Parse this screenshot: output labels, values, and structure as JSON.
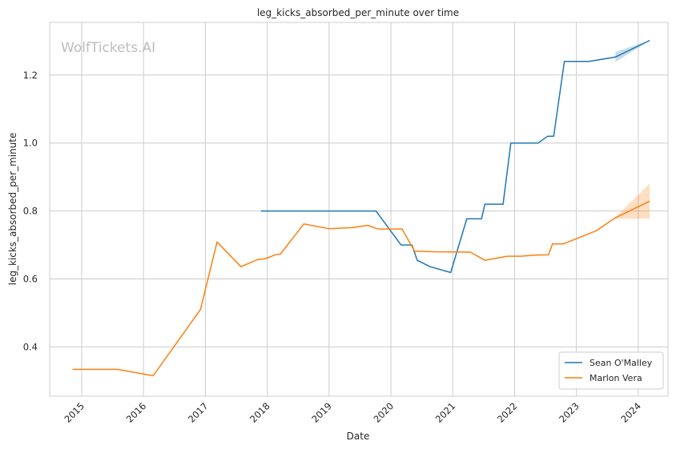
{
  "chart_data": {
    "type": "line",
    "title": "leg_kicks_absorbed_per_minute over time",
    "xlabel": "Date",
    "ylabel": "leg_kicks_absorbed_per_minute",
    "watermark": "WolfTickets.AI",
    "x_ticks": [
      "2015",
      "2016",
      "2017",
      "2018",
      "2019",
      "2020",
      "2021",
      "2022",
      "2023",
      "2024"
    ],
    "y_ticks": [
      "0.4",
      "0.6",
      "0.8",
      "1.0",
      "1.2"
    ],
    "xlim": [
      "2014-06-26",
      "2024-06-25"
    ],
    "ylim": [
      0.255,
      1.355
    ],
    "grid": true,
    "legend_position": "bottom-right",
    "series": [
      {
        "name": "Sean O'Malley",
        "color": "#1f77b4",
        "points": [
          [
            "2017-11-25",
            0.8
          ],
          [
            "2019-10-05",
            0.8
          ],
          [
            "2020-03-01",
            0.7
          ],
          [
            "2020-05-05",
            0.7
          ],
          [
            "2020-06-05",
            0.655
          ],
          [
            "2020-08-20",
            0.636
          ],
          [
            "2020-12-20",
            0.619
          ],
          [
            "2021-03-25",
            0.777
          ],
          [
            "2021-06-20",
            0.777
          ],
          [
            "2021-07-10",
            0.82
          ],
          [
            "2021-10-25",
            0.82
          ],
          [
            "2021-12-10",
            1.0
          ],
          [
            "2022-05-20",
            1.0
          ],
          [
            "2022-07-15",
            1.02
          ],
          [
            "2022-08-20",
            1.02
          ],
          [
            "2022-10-22",
            1.24
          ],
          [
            "2023-03-15",
            1.24
          ],
          [
            "2023-08-19",
            1.253
          ],
          [
            "2024-03-09",
            1.302
          ]
        ],
        "band": [
          [
            "2023-08-19",
            1.238,
            1.268
          ],
          [
            "2024-03-09",
            1.302,
            1.302
          ]
        ]
      },
      {
        "name": "Marlon Vera",
        "color": "#ff7f0e",
        "points": [
          [
            "2014-11-08",
            0.334
          ],
          [
            "2015-08-01",
            0.334
          ],
          [
            "2016-02-27",
            0.315
          ],
          [
            "2016-12-03",
            0.51
          ],
          [
            "2017-03-11",
            0.709
          ],
          [
            "2017-07-30",
            0.636
          ],
          [
            "2017-11-05",
            0.657
          ],
          [
            "2017-12-16",
            0.659
          ],
          [
            "2018-02-18",
            0.671
          ],
          [
            "2018-03-20",
            0.673
          ],
          [
            "2018-08-05",
            0.762
          ],
          [
            "2018-12-29",
            0.748
          ],
          [
            "2019-05-18",
            0.751
          ],
          [
            "2019-08-17",
            0.758
          ],
          [
            "2019-10-15",
            0.747
          ],
          [
            "2020-03-07",
            0.747
          ],
          [
            "2020-05-20",
            0.682
          ],
          [
            "2020-09-20",
            0.68
          ],
          [
            "2021-04-15",
            0.679
          ],
          [
            "2021-07-10",
            0.655
          ],
          [
            "2021-11-20",
            0.667
          ],
          [
            "2022-02-10",
            0.667
          ],
          [
            "2022-04-30",
            0.67
          ],
          [
            "2022-07-20",
            0.671
          ],
          [
            "2022-08-13",
            0.703
          ],
          [
            "2022-10-15",
            0.703
          ],
          [
            "2023-04-29",
            0.742
          ],
          [
            "2023-08-19",
            0.78
          ],
          [
            "2024-03-09",
            0.829
          ]
        ],
        "band": [
          [
            "2023-08-19",
            0.777,
            0.782
          ],
          [
            "2024-03-09",
            0.777,
            0.881
          ]
        ]
      }
    ]
  }
}
